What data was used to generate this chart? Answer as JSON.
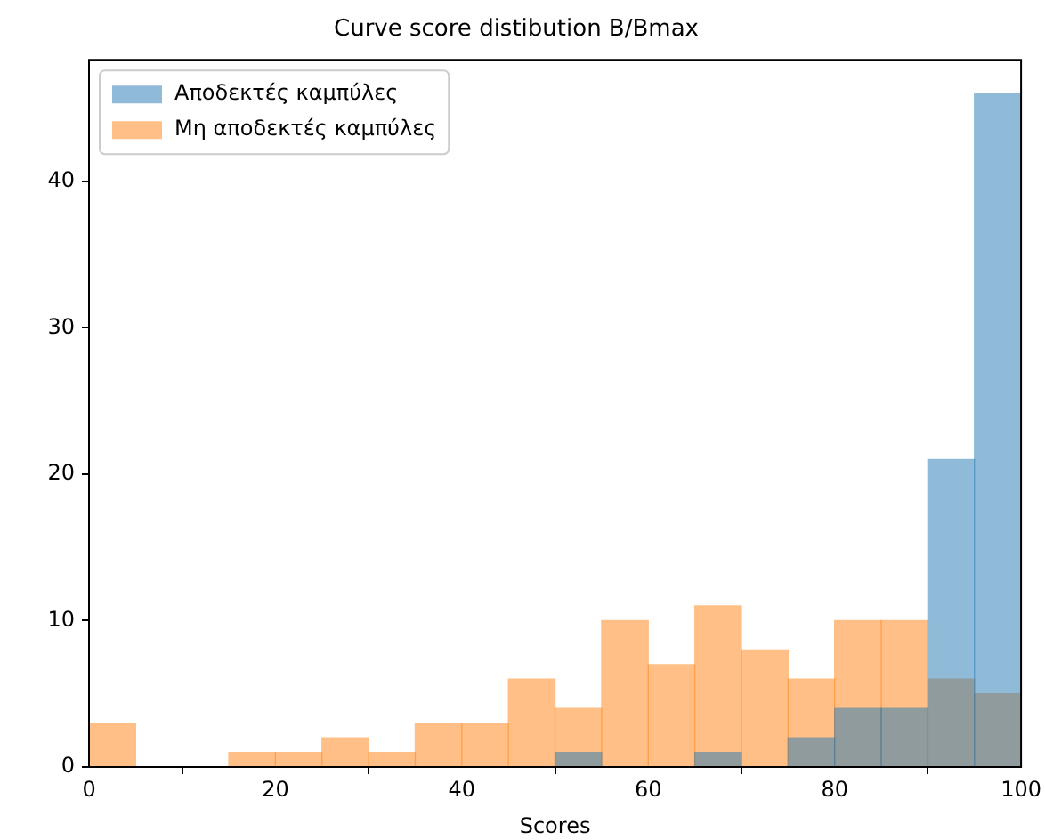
{
  "chart_data": {
    "type": "histogram",
    "title": "Curve score distibution B/Bmax",
    "xlabel": "Scores",
    "bins": [
      0,
      5,
      10,
      15,
      20,
      25,
      30,
      35,
      40,
      45,
      50,
      55,
      60,
      65,
      70,
      75,
      80,
      85,
      90,
      95,
      100
    ],
    "series": [
      {
        "name": "Αποδεκτές καμπύλες",
        "color": "#1f77b4",
        "values": [
          0,
          0,
          0,
          0,
          0,
          0,
          0,
          0,
          0,
          0,
          1,
          0,
          0,
          1,
          0,
          2,
          4,
          4,
          21,
          46
        ]
      },
      {
        "name": "Μη αποδεκτές καμπύλες",
        "color": "#ff7f0e",
        "values": [
          3,
          0,
          0,
          1,
          1,
          2,
          1,
          3,
          3,
          6,
          4,
          10,
          7,
          11,
          8,
          6,
          10,
          10,
          6,
          5
        ]
      }
    ],
    "xlim": [
      0,
      100
    ],
    "xticks": [
      0,
      20,
      40,
      60,
      80,
      100
    ],
    "ylim": [
      0,
      48.3
    ],
    "yticks": [
      0,
      10,
      20,
      30,
      40
    ],
    "grid": false,
    "legend": "top left"
  }
}
